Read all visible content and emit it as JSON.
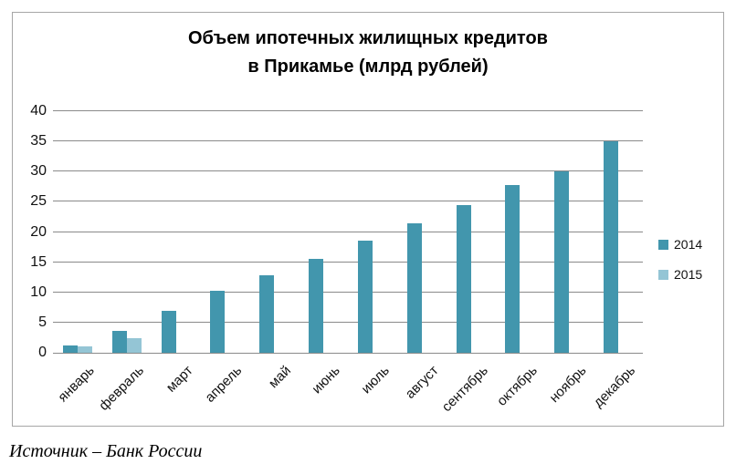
{
  "title": {
    "line1": "Объем ипотечных жилищных кредитов",
    "line2": "в Прикамье (млрд рублей)"
  },
  "source_note": "Источник – Банк России",
  "colors": {
    "series_2014": "#4296AD",
    "series_2015": "#94C5D5",
    "gridline": "#8a8a8a",
    "frame_border": "#a6a6a6"
  },
  "chart_data": {
    "type": "bar",
    "title": "Объем ипотечных жилищных кредитов в Прикамье (млрд рублей)",
    "categories": [
      "январь",
      "февраль",
      "март",
      "апрель",
      "май",
      "июнь",
      "июль",
      "август",
      "сентябрь",
      "октябрь",
      "ноябрь",
      "декабрь"
    ],
    "series": [
      {
        "name": "2014",
        "color": "#4296AD",
        "values": [
          1.2,
          3.7,
          6.9,
          10.2,
          12.9,
          15.5,
          18.6,
          21.5,
          24.4,
          27.8,
          30.1,
          35.0
        ]
      },
      {
        "name": "2015",
        "color": "#94C5D5",
        "values": [
          1.0,
          2.4,
          null,
          null,
          null,
          null,
          null,
          null,
          null,
          null,
          null,
          null
        ]
      }
    ],
    "xlabel": "",
    "ylabel": "",
    "ylim": [
      0,
      40
    ],
    "ytick_step": 5,
    "grid": true,
    "legend_position": "right"
  }
}
